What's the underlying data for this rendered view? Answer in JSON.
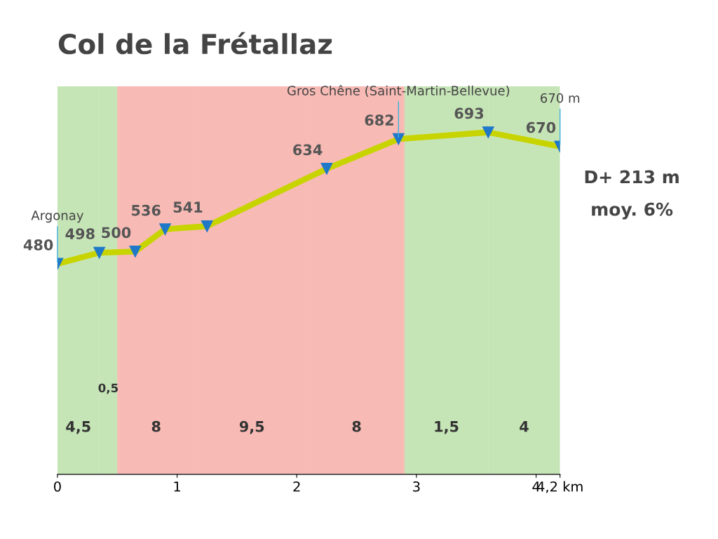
{
  "chart_data": {
    "type": "line",
    "title": "Col de la Frétallaz",
    "x": [
      0,
      0.35,
      0.65,
      0.9,
      1.25,
      2.25,
      2.85,
      3.6,
      4.2
    ],
    "series": [
      {
        "color": "#c8d400",
        "values": [
          480,
          498,
          500,
          536,
          541,
          634,
          682,
          693,
          670
        ]
      }
    ],
    "xlim": [
      0,
      4.2
    ],
    "xticks": [
      0,
      1,
      2,
      3,
      4,
      {
        "value": 4.2,
        "label": "4,2 km"
      }
    ],
    "tick_labels": "x",
    "data_labels": true,
    "marker": "triangle",
    "legend": false,
    "grid": false,
    "bands": [
      {
        "axis": "x",
        "from": 0,
        "to": 0.35,
        "label": "4,5",
        "color": "#5cb531"
      },
      {
        "axis": "x",
        "from": 0.35,
        "to": 0.5,
        "label": "0,5",
        "color": "#5cb531"
      },
      {
        "axis": "x",
        "from": 0.5,
        "to": 1.15,
        "label": "8",
        "color": "#e8392b"
      },
      {
        "axis": "x",
        "from": 1.15,
        "to": 2.1,
        "label": "9,5",
        "color": "#e8392b"
      },
      {
        "axis": "x",
        "from": 2.1,
        "to": 2.9,
        "label": "8",
        "color": "#e8392b"
      },
      {
        "axis": "x",
        "from": 2.9,
        "to": 3.6,
        "label": "1,5",
        "color": "#5cb531"
      },
      {
        "axis": "x",
        "from": 3.6,
        "to": 4.2,
        "label": "4",
        "color": "#5cb531"
      }
    ],
    "annotations": [
      {
        "text": "Argonay",
        "x": 0,
        "y": 480
      },
      {
        "text": "Gros Chêne (Saint-Martin-Bellevue)",
        "x": 2.85,
        "y": 682
      },
      {
        "text": "670 m",
        "x": 4.2,
        "y": 670
      },
      "D+ 213 m",
      "moy. 6%"
    ]
  }
}
